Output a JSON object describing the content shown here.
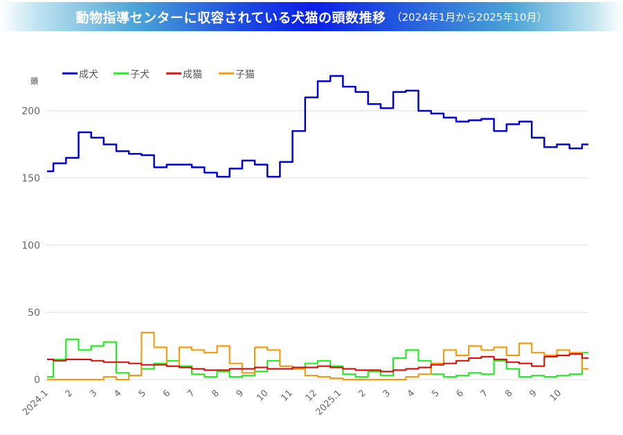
{
  "header": {
    "title": "動物指導センターに収容されている犬猫の頭数推移",
    "subtitle": "（2024年1月から2025年10月）"
  },
  "colors": {
    "adult_dog": "#0000cc",
    "puppy": "#22ee22",
    "adult_cat": "#dd1111",
    "kitten": "#f39c12",
    "grid": "#dddddd"
  },
  "chart_data": {
    "type": "line",
    "title": "動物指導センターに収容されている犬猫の頭数推移（2024年1月から2025年10月）",
    "xlabel": "",
    "ylabel": "頭",
    "ylim": [
      0,
      225
    ],
    "yticks": [
      0,
      50,
      100,
      150,
      200
    ],
    "grid": true,
    "legend_position": "top-left",
    "x_tick_labels": [
      "2024.1",
      "2",
      "3",
      "4",
      "5",
      "6",
      "7",
      "8",
      "9",
      "10",
      "11",
      "12",
      "2025.1",
      "2",
      "3",
      "4",
      "5",
      "6",
      "7",
      "8",
      "9",
      "10"
    ],
    "x": [
      "2024-01a",
      "2024-01b",
      "2024-02a",
      "2024-02b",
      "2024-03a",
      "2024-03b",
      "2024-04a",
      "2024-04b",
      "2024-05a",
      "2024-05b",
      "2024-06a",
      "2024-06b",
      "2024-07a",
      "2024-07b",
      "2024-08a",
      "2024-08b",
      "2024-09a",
      "2024-09b",
      "2024-10a",
      "2024-10b",
      "2024-11a",
      "2024-11b",
      "2024-12a",
      "2024-12b",
      "2025-01a",
      "2025-01b",
      "2025-02a",
      "2025-02b",
      "2025-03a",
      "2025-03b",
      "2025-04a",
      "2025-04b",
      "2025-05a",
      "2025-05b",
      "2025-06a",
      "2025-06b",
      "2025-07a",
      "2025-07b",
      "2025-08a",
      "2025-08b",
      "2025-09a",
      "2025-09b",
      "2025-10a",
      "2025-10b"
    ],
    "series": [
      {
        "name": "成犬",
        "values": [
          155,
          161,
          165,
          184,
          180,
          175,
          170,
          168,
          167,
          158,
          160,
          160,
          158,
          154,
          151,
          157,
          163,
          160,
          151,
          162,
          185,
          210,
          222,
          226,
          218,
          214,
          205,
          202,
          214,
          215,
          200,
          198,
          195,
          192,
          193,
          194,
          185,
          190,
          192,
          180,
          173,
          175,
          172,
          175
        ]
      },
      {
        "name": "子犬",
        "values": [
          2,
          15,
          30,
          22,
          25,
          28,
          5,
          3,
          8,
          12,
          14,
          10,
          4,
          2,
          6,
          2,
          3,
          6,
          14,
          10,
          8,
          12,
          14,
          10,
          4,
          2,
          6,
          3,
          16,
          22,
          14,
          4,
          2,
          3,
          5,
          4,
          14,
          8,
          2,
          3,
          2,
          3,
          4,
          20
        ]
      },
      {
        "name": "成猫",
        "values": [
          15,
          14,
          15,
          15,
          14,
          13,
          13,
          12,
          11,
          11,
          10,
          9,
          8,
          7,
          7,
          8,
          8,
          9,
          8,
          8,
          9,
          9,
          10,
          9,
          8,
          7,
          7,
          6,
          7,
          8,
          9,
          11,
          12,
          14,
          16,
          17,
          15,
          13,
          12,
          10,
          17,
          18,
          19,
          16
        ]
      },
      {
        "name": "子猫",
        "values": [
          0,
          0,
          0,
          0,
          0,
          2,
          0,
          3,
          35,
          24,
          10,
          24,
          22,
          20,
          25,
          12,
          5,
          24,
          22,
          10,
          8,
          3,
          2,
          1,
          0,
          0,
          0,
          0,
          0,
          2,
          4,
          12,
          22,
          18,
          25,
          22,
          24,
          18,
          27,
          20,
          18,
          22,
          20,
          8
        ]
      }
    ]
  },
  "legend": {
    "unit": "頭",
    "items": [
      {
        "label": "成犬"
      },
      {
        "label": "子犬"
      },
      {
        "label": "成猫"
      },
      {
        "label": "子猫"
      }
    ]
  }
}
